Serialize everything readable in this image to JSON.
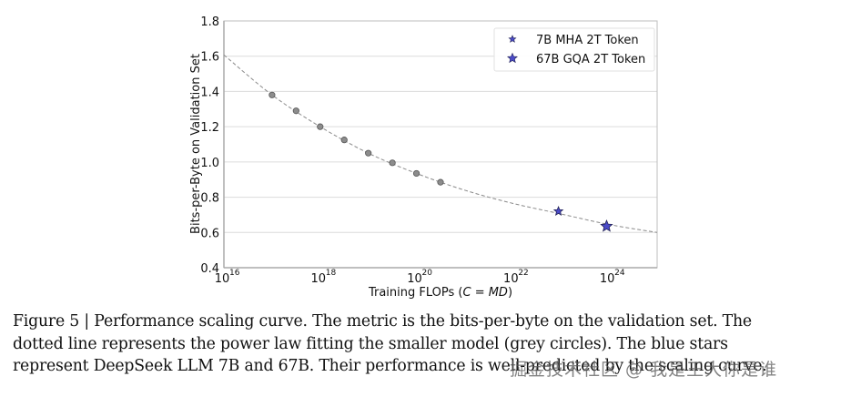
{
  "chart_data": {
    "type": "scatter",
    "title": "",
    "xlabel_prefix": "Training FLOPs (",
    "xlabel_math": "C = MD",
    "xlabel_suffix": ")",
    "xlabel": "Training FLOPs (C = MD)",
    "ylabel": "Bits-per-Byte on Validation Set",
    "x_scale": "log",
    "xlim_log10": [
      16,
      25
    ],
    "ylim": [
      0.4,
      1.8
    ],
    "x_ticks": [
      {
        "base": "10",
        "exp": "16",
        "log10": 16
      },
      {
        "base": "10",
        "exp": "18",
        "log10": 18
      },
      {
        "base": "10",
        "exp": "20",
        "log10": 20
      },
      {
        "base": "10",
        "exp": "22",
        "log10": 22
      },
      {
        "base": "10",
        "exp": "24",
        "log10": 24
      }
    ],
    "y_ticks": [
      "0.4",
      "0.6",
      "0.8",
      "1.0",
      "1.2",
      "1.4",
      "1.6",
      "1.8"
    ],
    "grid": "horizontal",
    "legend_position": "top-right",
    "series": [
      {
        "name": "smaller models (grey circles)",
        "marker": "circle",
        "color": "#8c8c8c",
        "in_legend": false,
        "points": [
          {
            "x_log10": 17.0,
            "y": 1.38
          },
          {
            "x_log10": 17.5,
            "y": 1.29
          },
          {
            "x_log10": 18.0,
            "y": 1.2
          },
          {
            "x_log10": 18.5,
            "y": 1.125
          },
          {
            "x_log10": 19.0,
            "y": 1.05
          },
          {
            "x_log10": 19.5,
            "y": 0.995
          },
          {
            "x_log10": 20.0,
            "y": 0.935
          },
          {
            "x_log10": 20.5,
            "y": 0.885
          }
        ]
      },
      {
        "name": "7B MHA 2T Token",
        "marker": "star",
        "color": "#4b4bc8",
        "in_legend": true,
        "points": [
          {
            "x_log10": 22.95,
            "y": 0.72
          }
        ]
      },
      {
        "name": "67B GQA 2T Token",
        "marker": "star-large",
        "color": "#4b4bc8",
        "in_legend": true,
        "points": [
          {
            "x_log10": 23.95,
            "y": 0.635
          }
        ]
      }
    ],
    "fit_curve": {
      "name": "power law fit",
      "style": "dashed",
      "color": "#8a8a8a",
      "points": [
        {
          "x_log10": 16.0,
          "y": 1.607
        },
        {
          "x_log10": 17.0,
          "y": 1.38
        },
        {
          "x_log10": 18.0,
          "y": 1.2
        },
        {
          "x_log10": 19.0,
          "y": 1.05
        },
        {
          "x_log10": 20.0,
          "y": 0.935
        },
        {
          "x_log10": 21.0,
          "y": 0.84
        },
        {
          "x_log10": 22.0,
          "y": 0.765
        },
        {
          "x_log10": 23.0,
          "y": 0.705
        },
        {
          "x_log10": 24.0,
          "y": 0.645
        },
        {
          "x_log10": 25.0,
          "y": 0.6
        }
      ]
    }
  },
  "caption": {
    "lines": [
      "Figure 5 | Performance scaling curve. The metric is the bits-per-byte on the validation set. The",
      "dotted line represents the power law fitting the smaller model (grey circles). The blue stars",
      "represent DeepSeek LLM 7B and 67B. Their performance is well-predicted by the scaling curve."
    ]
  },
  "watermark": "掘金技术社区 @ 我是王大你是谁"
}
